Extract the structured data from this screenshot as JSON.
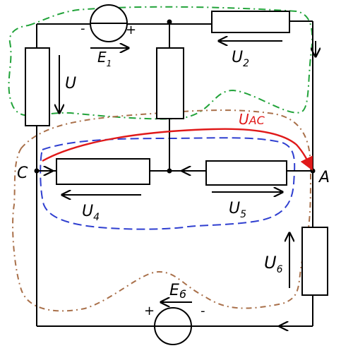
{
  "labels": {
    "e1": "E",
    "e1_sub": "1",
    "u2": "U",
    "u2_sub": "2",
    "u": "U",
    "uac": "U",
    "uac_sub": "AC",
    "node_c": "C",
    "node_a": "A",
    "u4": "U",
    "u4_sub": "4",
    "u5": "U",
    "u5_sub": "5",
    "u6": "U",
    "u6_sub": "6",
    "e6": "E",
    "e6_sub": "6",
    "plus": "+",
    "minus": "-"
  },
  "colors": {
    "wire": "#000000",
    "green_loop": "#22a33a",
    "blue_loop": "#2f3fd0",
    "brown_loop": "#a9704a",
    "red_arrow": "#e01919"
  }
}
